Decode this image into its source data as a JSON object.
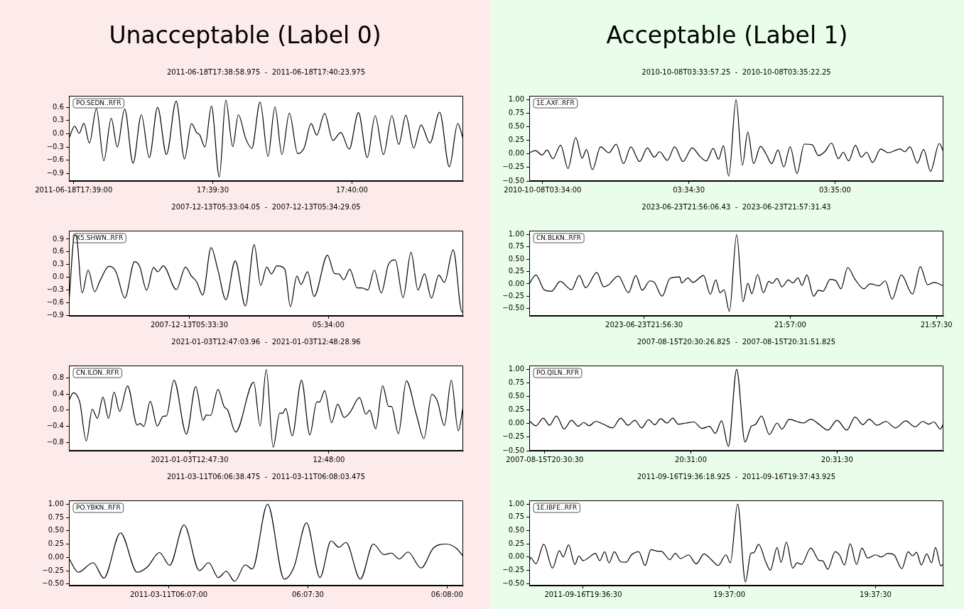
{
  "chart_data": [
    {
      "type": "other",
      "title": "Unacceptable (Label 0)"
    },
    {
      "type": "line",
      "title": "2011-06-18T17:38:58.975  -  2011-06-18T17:40:23.975",
      "annotations": [
        "PO.SEDN..RFR"
      ],
      "color": "#000000",
      "xlim": [
        "2011-06-18T17:38:58.975",
        "2011-06-18T17:40:23.975"
      ],
      "xticks": [
        {
          "value": "2011-06-18T17:39:00",
          "label": "2011-06-18T17:39:00"
        },
        {
          "value": "2011-06-18T17:39:30",
          "label": "17:39:30"
        },
        {
          "value": "2011-06-18T17:40:00",
          "label": "17:40:00"
        }
      ],
      "ylim": [
        -1.07,
        0.86
      ],
      "yticks": [
        {
          "value": -0.9,
          "label": "−0.9"
        },
        {
          "value": -0.6,
          "label": "−0.6"
        },
        {
          "value": -0.3,
          "label": "−0.3"
        },
        {
          "value": 0,
          "label": "0.0"
        },
        {
          "value": 0.3,
          "label": "0.3"
        },
        {
          "value": 0.6,
          "label": "0.6"
        }
      ],
      "x": [
        "2011-06-18T17:38:58.975",
        "2011-06-18T17:39:00.2",
        "2011-06-18T17:39:01.2",
        "2011-06-18T17:39:02.2",
        "2011-06-18T17:39:03.4",
        "2011-06-18T17:39:04.9",
        "2011-06-18T17:39:06.5",
        "2011-06-18T17:39:08.1",
        "2011-06-18T17:39:09.4",
        "2011-06-18T17:39:11.0",
        "2011-06-18T17:39:12.8",
        "2011-06-18T17:39:14.6",
        "2011-06-18T17:39:16.3",
        "2011-06-18T17:39:18.1",
        "2011-06-18T17:39:20.0",
        "2011-06-18T17:39:22.1",
        "2011-06-18T17:39:23.9",
        "2011-06-18T17:39:25.4",
        "2011-06-18T17:39:26.5",
        "2011-06-18T17:39:27.2",
        "2011-06-18T17:39:28.3",
        "2011-06-18T17:39:29.7",
        "2011-06-18T17:39:31.4",
        "2011-06-18T17:39:32.8",
        "2011-06-18T17:39:34.3",
        "2011-06-18T17:39:35.5",
        "2011-06-18T17:39:37.1",
        "2011-06-18T17:39:38.4",
        "2011-06-18T17:39:40.2",
        "2011-06-18T17:39:41.9",
        "2011-06-18T17:39:43.4",
        "2011-06-18T17:39:44.9",
        "2011-06-18T17:39:46.5",
        "2011-06-18T17:39:48.3",
        "2011-06-18T17:39:49.7",
        "2011-06-18T17:39:51.2",
        "2011-06-18T17:39:52.4",
        "2011-06-18T17:39:54.1",
        "2011-06-18T17:39:55.9",
        "2011-06-18T17:39:57.6",
        "2011-06-18T17:39:59.4",
        "2011-06-18T17:40:01.4",
        "2011-06-18T17:40:03.3",
        "2011-06-18T17:40:05.0",
        "2011-06-18T17:40:06.8",
        "2011-06-18T17:40:08.6",
        "2011-06-18T17:40:10.1",
        "2011-06-18T17:40:11.6",
        "2011-06-18T17:40:13.3",
        "2011-06-18T17:40:14.9",
        "2011-06-18T17:40:16.8",
        "2011-06-18T17:40:18.9",
        "2011-06-18T17:40:21.0",
        "2011-06-18T17:40:22.8",
        "2011-06-18T17:40:23.975"
      ],
      "values": [
        -0.11,
        0.17,
        0.01,
        0.24,
        -0.21,
        0.57,
        -0.61,
        0.35,
        -0.3,
        0.56,
        -0.67,
        0.43,
        -0.54,
        0.6,
        -0.47,
        0.74,
        -0.57,
        0.23,
        0.03,
        -0.03,
        -0.3,
        0.63,
        -0.98,
        0.76,
        -0.29,
        0.43,
        -0.11,
        -0.33,
        0.72,
        -0.51,
        0.61,
        -0.47,
        0.47,
        -0.45,
        -0.32,
        0.23,
        -0.03,
        0.46,
        -0.15,
        0.03,
        -0.35,
        0.48,
        -0.54,
        0.41,
        -0.47,
        0.41,
        -0.24,
        0.42,
        -0.32,
        0.2,
        -0.21,
        0.49,
        -0.75,
        0.23,
        -0.12
      ]
    },
    {
      "type": "line",
      "title": "2007-12-13T05:33:04.05  -  2007-12-13T05:34:29.05",
      "annotations": [
        "X5.SHWN..RFR"
      ],
      "color": "#000000",
      "xlim": [
        "2007-12-13T05:33:04.05",
        "2007-12-13T05:34:29.05"
      ],
      "xticks": [
        {
          "value": "2007-12-13T05:33:30",
          "label": "2007-12-13T05:33:30"
        },
        {
          "value": "2007-12-13T05:34:00",
          "label": "05:34:00"
        }
      ],
      "ylim": [
        -0.91,
        1.1
      ],
      "yticks": [
        {
          "value": -0.9,
          "label": "−0.9"
        },
        {
          "value": -0.6,
          "label": "−0.6"
        },
        {
          "value": -0.3,
          "label": "−0.3"
        },
        {
          "value": 0,
          "label": "0.0"
        },
        {
          "value": 0.3,
          "label": "0.3"
        },
        {
          "value": 0.6,
          "label": "0.6"
        },
        {
          "value": 0.9,
          "label": "0.9"
        }
      ],
      "x": [
        "2007-12-13T05:33:04.05",
        "2007-12-13T05:33:05.3",
        "2007-12-13T05:33:05.7",
        "2007-12-13T05:33:06.9",
        "2007-12-13T05:33:08.2",
        "2007-12-13T05:33:09.6",
        "2007-12-13T05:33:10.8",
        "2007-12-13T05:33:12.7",
        "2007-12-13T05:33:14.2",
        "2007-12-13T05:33:16.1",
        "2007-12-13T05:33:18.2",
        "2007-12-13T05:33:19.3",
        "2007-12-13T05:33:20.8",
        "2007-12-13T05:33:22.3",
        "2007-12-13T05:33:23.2",
        "2007-12-13T05:33:24.4",
        "2007-12-13T05:33:27.2",
        "2007-12-13T05:33:29.2",
        "2007-12-13T05:33:30.4",
        "2007-12-13T05:33:31.6",
        "2007-12-13T05:33:32.9",
        "2007-12-13T05:33:34.7",
        "2007-12-13T05:33:36.2",
        "2007-12-13T05:33:37.9",
        "2007-12-13T05:33:39.9",
        "2007-12-13T05:33:42.1",
        "2007-12-13T05:33:44.0",
        "2007-12-13T05:33:45.4",
        "2007-12-13T05:33:46.7",
        "2007-12-13T05:33:47.7",
        "2007-12-13T05:33:48.9",
        "2007-12-13T05:33:50.6",
        "2007-12-13T05:33:51.8",
        "2007-12-13T05:33:53.2",
        "2007-12-13T05:33:54.1",
        "2007-12-13T05:33:55.5",
        "2007-12-13T05:33:56.9",
        "2007-12-13T05:33:59.8",
        "2007-12-13T05:34:01.3",
        "2007-12-13T05:34:02.2",
        "2007-12-13T05:34:03.3",
        "2007-12-13T05:34:04.6",
        "2007-12-13T05:34:06.2",
        "2007-12-13T05:34:07.2",
        "2007-12-13T05:34:08.5",
        "2007-12-13T05:34:09.9",
        "2007-12-13T05:34:11.4",
        "2007-12-13T05:34:12.9",
        "2007-12-13T05:34:14.4",
        "2007-12-13T05:34:16.1",
        "2007-12-13T05:34:17.8",
        "2007-12-13T05:34:19.3",
        "2007-12-13T05:34:20.7",
        "2007-12-13T05:34:22.2",
        "2007-12-13T05:34:23.8",
        "2007-12-13T05:34:25.0",
        "2007-12-13T05:34:26.9",
        "2007-12-13T05:34:28.8",
        "2007-12-13T05:34:29.05"
      ],
      "values": [
        -0.6,
        1.0,
        0.95,
        -0.37,
        0.17,
        -0.34,
        -0.07,
        0.26,
        0.13,
        -0.49,
        0.37,
        0.26,
        -0.3,
        0.23,
        0.13,
        0.27,
        -0.29,
        0.24,
        0.04,
        -0.11,
        -0.42,
        0.7,
        0.16,
        -0.53,
        0.39,
        -0.68,
        0.77,
        -0.19,
        0.24,
        0.08,
        0.27,
        0.19,
        -0.69,
        0.03,
        -0.17,
        0.13,
        -0.45,
        0.52,
        0.09,
        0.08,
        -0.06,
        0.19,
        -0.25,
        -0.25,
        -0.3,
        0.17,
        -0.37,
        0.29,
        0.41,
        -0.48,
        0.59,
        -0.3,
        0.08,
        -0.49,
        0.05,
        -0.12,
        0.65,
        -0.82,
        -0.8
      ]
    },
    {
      "type": "line",
      "title": "2021-01-03T12:47:03.96  -  2021-01-03T12:48:28.96",
      "annotations": [
        "CN.ILON..RFR"
      ],
      "color": "#000000",
      "xlim": [
        "2021-01-03T12:47:03.96",
        "2021-01-03T12:48:28.96"
      ],
      "xticks": [
        {
          "value": "2021-01-03T12:47:30",
          "label": "2021-01-03T12:47:30"
        },
        {
          "value": "2021-01-03T12:48:00",
          "label": "12:48:00"
        }
      ],
      "ylim": [
        -1.0,
        1.1
      ],
      "yticks": [
        {
          "value": -0.8,
          "label": "−0.8"
        },
        {
          "value": -0.4,
          "label": "−0.4"
        },
        {
          "value": 0,
          "label": "0.0"
        },
        {
          "value": 0.4,
          "label": "0.4"
        },
        {
          "value": 0.8,
          "label": "0.8"
        }
      ],
      "x": [
        "2021-01-03T12:47:03.96",
        "2021-01-03T12:47:04.9",
        "2021-01-03T12:47:06.3",
        "2021-01-03T12:47:07.7",
        "2021-01-03T12:47:09.0",
        "2021-01-03T12:47:10.1",
        "2021-01-03T12:47:11.3",
        "2021-01-03T12:47:12.5",
        "2021-01-03T12:47:13.7",
        "2021-01-03T12:47:14.9",
        "2021-01-03T12:47:16.6",
        "2021-01-03T12:47:18.7",
        "2021-01-03T12:47:19.3",
        "2021-01-03T12:47:20.1",
        "2021-01-03T12:47:21.5",
        "2021-01-03T12:47:23.0",
        "2021-01-03T12:47:24.3",
        "2021-01-03T12:47:25.0",
        "2021-01-03T12:47:26.6",
        "2021-01-03T12:47:29.3",
        "2021-01-03T12:47:31.3",
        "2021-01-03T12:47:32.9",
        "2021-01-03T12:47:33.6",
        "2021-01-03T12:47:34.5",
        "2021-01-03T12:47:36.1",
        "2021-01-03T12:47:37.4",
        "2021-01-03T12:47:38.2",
        "2021-01-03T12:47:39.9",
        "2021-01-03T12:47:43.8",
        "2021-01-03T12:47:45.2",
        "2021-01-03T12:47:46.5",
        "2021-01-03T12:47:48.0",
        "2021-01-03T12:47:49.4",
        "2021-01-03T12:47:50.0",
        "2021-01-03T12:47:50.7",
        "2021-01-03T12:47:52.1",
        "2021-01-03T12:47:54.1",
        "2021-01-03T12:47:55.9",
        "2021-01-03T12:47:57.4",
        "2021-01-03T12:47:58.0",
        "2021-01-03T12:47:59.1",
        "2021-01-03T12:48:00.6",
        "2021-01-03T12:48:01.9",
        "2021-01-03T12:48:03.3",
        "2021-01-03T12:48:04.6",
        "2021-01-03T12:48:06.6",
        "2021-01-03T12:48:08.0",
        "2021-01-03T12:48:08.8",
        "2021-01-03T12:48:10.1",
        "2021-01-03T12:48:11.6",
        "2021-01-03T12:48:12.9",
        "2021-01-03T12:48:13.5",
        "2021-01-03T12:48:15.0",
        "2021-01-03T12:48:16.7",
        "2021-01-03T12:48:18.9",
        "2021-01-03T12:48:20.5",
        "2021-01-03T12:48:22.2",
        "2021-01-03T12:48:23.4",
        "2021-01-03T12:48:24.9",
        "2021-01-03T12:48:26.4",
        "2021-01-03T12:48:27.9",
        "2021-01-03T12:48:28.96"
      ],
      "values": [
        0.23,
        0.43,
        0.2,
        -0.76,
        0.02,
        -0.2,
        0.32,
        -0.2,
        0.44,
        -0.03,
        0.6,
        -0.37,
        -0.33,
        -0.4,
        0.22,
        -0.39,
        -0.15,
        -0.14,
        0.74,
        -0.59,
        0.58,
        -0.25,
        -0.12,
        -0.13,
        0.51,
        0.09,
        0,
        -0.54,
        0.69,
        -0.39,
        1.0,
        -0.91,
        -0.07,
        -0.08,
        0.04,
        -0.63,
        0.74,
        -0.61,
        0.2,
        0.2,
        0.48,
        -0.31,
        0.15,
        -0.18,
        -0.05,
        0.31,
        -0.1,
        0,
        -0.46,
        0.6,
        0.09,
        0.09,
        -0.58,
        0.72,
        -0.12,
        -0.7,
        0.39,
        0.22,
        -0.38,
        0.74,
        -0.51,
        0.09
      ]
    },
    {
      "type": "line",
      "title": "2011-03-11T06:06:38.475  -  2011-03-11T06:08:03.475",
      "annotations": [
        "PO.YBKN..RFR"
      ],
      "color": "#000000",
      "xlim": [
        "2011-03-11T06:06:38.475",
        "2011-03-11T06:08:03.475"
      ],
      "xticks": [
        {
          "value": "2011-03-11T06:07:00",
          "label": "2011-03-11T06:07:00"
        },
        {
          "value": "2011-03-11T06:07:30",
          "label": "06:07:30"
        },
        {
          "value": "2011-03-11T06:08:00",
          "label": "06:08:00"
        }
      ],
      "ylim": [
        -0.53,
        1.07
      ],
      "yticks": [
        {
          "value": -0.5,
          "label": "−0.50"
        },
        {
          "value": -0.25,
          "label": "−0.25"
        },
        {
          "value": 0,
          "label": "0.00"
        },
        {
          "value": 0.25,
          "label": "0.25"
        },
        {
          "value": 0.5,
          "label": "0.50"
        },
        {
          "value": 0.75,
          "label": "0.75"
        },
        {
          "value": 1,
          "label": "1.00"
        }
      ],
      "x": [
        "2011-03-11T06:06:38.475",
        "2011-03-11T06:06:40.5",
        "2011-03-11T06:06:43.7",
        "2011-03-11T06:06:46.0",
        "2011-03-11T06:06:49.6",
        "2011-03-11T06:06:53.2",
        "2011-03-11T06:06:55.4",
        "2011-03-11T06:06:58.0",
        "2011-03-11T06:07:00.2",
        "2011-03-11T06:07:03.3",
        "2011-03-11T06:07:06.6",
        "2011-03-11T06:07:08.6",
        "2011-03-11T06:07:10.7",
        "2011-03-11T06:07:12.4",
        "2011-03-11T06:07:14.2",
        "2011-03-11T06:07:16.5",
        "2011-03-11T06:07:18.0",
        "2011-03-11T06:07:21.3",
        "2011-03-11T06:07:24.9",
        "2011-03-11T06:07:27.0",
        "2011-03-11T06:07:29.7",
        "2011-03-11T06:07:32.6",
        "2011-03-11T06:07:35.0",
        "2011-03-11T06:07:36.7",
        "2011-03-11T06:07:38.2",
        "2011-03-11T06:07:41.3",
        "2011-03-11T06:07:44.1",
        "2011-03-11T06:07:46.4",
        "2011-03-11T06:07:48.0",
        "2011-03-11T06:07:49.7",
        "2011-03-11T06:07:51.6",
        "2011-03-11T06:07:54.4",
        "2011-03-11T06:07:57.1",
        "2011-03-11T06:07:59.8",
        "2011-03-11T06:08:02.0",
        "2011-03-11T06:08:03.475"
      ],
      "values": [
        -0.02,
        -0.28,
        -0.1,
        -0.39,
        0.46,
        -0.28,
        -0.18,
        0.09,
        -0.15,
        0.61,
        -0.25,
        -0.1,
        -0.38,
        -0.26,
        -0.45,
        -0.14,
        -0.22,
        1.0,
        -0.41,
        -0.18,
        0.65,
        -0.38,
        0.31,
        0.19,
        0.28,
        -0.41,
        0.25,
        0.05,
        0.08,
        -0.03,
        0.1,
        -0.2,
        0.18,
        0.25,
        0.17,
        0.02
      ]
    },
    {
      "type": "other",
      "title": "Acceptable (Label 1)"
    },
    {
      "type": "line",
      "title": "2010-10-08T03:33:57.25  -  2010-10-08T03:35:22.25",
      "annotations": [
        "1E.AXF..RFR"
      ],
      "color": "#000000",
      "xlim": [
        "2010-10-08T03:33:57.25",
        "2010-10-08T03:35:22.25"
      ],
      "xticks": [
        {
          "value": "2010-10-08T03:34:00",
          "label": "2010-10-08T03:34:00"
        },
        {
          "value": "2010-10-08T03:34:30",
          "label": "03:34:30"
        },
        {
          "value": "2010-10-08T03:35:00",
          "label": "03:35:00"
        }
      ],
      "ylim": [
        -0.5,
        1.07
      ],
      "yticks": [
        {
          "value": -0.5,
          "label": "−0.50"
        },
        {
          "value": -0.25,
          "label": "−0.25"
        },
        {
          "value": 0,
          "label": "0.00"
        },
        {
          "value": 0.25,
          "label": "0.25"
        },
        {
          "value": 0.5,
          "label": "0.50"
        },
        {
          "value": 0.75,
          "label": "0.75"
        },
        {
          "value": 1,
          "label": "1.00"
        }
      ],
      "x": [
        "2010-10-08T03:33:57.25",
        "2010-10-08T03:33:58.5",
        "2010-10-08T03:33:59.9",
        "2010-10-08T03:34:00.9",
        "2010-10-08T03:34:02.1",
        "2010-10-08T03:34:03.7",
        "2010-10-08T03:34:05.2",
        "2010-10-08T03:34:06.8",
        "2010-10-08T03:34:08.1",
        "2010-10-08T03:34:09.0",
        "2010-10-08T03:34:10.2",
        "2010-10-08T03:34:11.9",
        "2010-10-08T03:34:13.6",
        "2010-10-08T03:34:15.1",
        "2010-10-08T03:34:16.6",
        "2010-10-08T03:34:18.1",
        "2010-10-08T03:34:19.9",
        "2010-10-08T03:34:21.5",
        "2010-10-08T03:34:22.9",
        "2010-10-08T03:34:24.0",
        "2010-10-08T03:34:25.6",
        "2010-10-08T03:34:27.1",
        "2010-10-08T03:34:28.8",
        "2010-10-08T03:34:30.7",
        "2010-10-08T03:34:32.3",
        "2010-10-08T03:34:33.6",
        "2010-10-08T03:34:35.0",
        "2010-10-08T03:34:36.1",
        "2010-10-08T03:34:37.1",
        "2010-10-08T03:34:38.2",
        "2010-10-08T03:34:39.7",
        "2010-10-08T03:34:41.0",
        "2010-10-08T03:34:42.1",
        "2010-10-08T03:34:43.3",
        "2010-10-08T03:34:44.7",
        "2010-10-08T03:34:45.9",
        "2010-10-08T03:34:47.0",
        "2010-10-08T03:34:48.3",
        "2010-10-08T03:34:49.5",
        "2010-10-08T03:34:50.8",
        "2010-10-08T03:34:52.2",
        "2010-10-08T03:34:53.7",
        "2010-10-08T03:34:55.3",
        "2010-10-08T03:34:56.6",
        "2010-10-08T03:34:57.9",
        "2010-10-08T03:34:59.3",
        "2010-10-08T03:35:00.7",
        "2010-10-08T03:35:01.7",
        "2010-10-08T03:35:02.8",
        "2010-10-08T03:35:04.2",
        "2010-10-08T03:35:05.4",
        "2010-10-08T03:35:06.5",
        "2010-10-08T03:35:07.7",
        "2010-10-08T03:35:09.4",
        "2010-10-08T03:35:10.9",
        "2010-10-08T03:35:13.4",
        "2010-10-08T03:35:14.3",
        "2010-10-08T03:35:15.4",
        "2010-10-08T03:35:16.9",
        "2010-10-08T03:35:18.2",
        "2010-10-08T03:35:19.6",
        "2010-10-08T03:35:21.4",
        "2010-10-08T03:35:22.25"
      ],
      "values": [
        0.02,
        0.06,
        -0.02,
        0.07,
        -0.09,
        0.16,
        -0.27,
        0.3,
        -0.08,
        0.08,
        -0.29,
        0.13,
        0.02,
        0.18,
        -0.18,
        0.13,
        -0.14,
        0.11,
        -0.06,
        0.04,
        -0.12,
        0.13,
        -0.14,
        0.11,
        -0.05,
        -0.13,
        0.1,
        -0.1,
        0.15,
        -0.41,
        1.0,
        -0.21,
        0.4,
        -0.18,
        0.14,
        -0.01,
        -0.18,
        0.07,
        -0.24,
        0.13,
        -0.36,
        0.18,
        0.17,
        -0.03,
        0.04,
        0.2,
        -0.09,
        0.03,
        -0.13,
        0.16,
        -0.06,
        0.03,
        -0.16,
        0.09,
        0.02,
        0.09,
        0.04,
        0.13,
        -0.17,
        0.08,
        -0.32,
        0.19,
        0.04
      ]
    },
    {
      "type": "line",
      "title": "2023-06-23T21:56:06.43  -  2023-06-23T21:57:31.43",
      "annotations": [
        "CN.BLKN..RFR"
      ],
      "color": "#000000",
      "xlim": [
        "2023-06-23T21:56:06.43",
        "2023-06-23T21:57:31.43"
      ],
      "xticks": [
        {
          "value": "2023-06-23T21:56:30",
          "label": "2023-06-23T21:56:30"
        },
        {
          "value": "2023-06-23T21:57:00",
          "label": "21:57:00"
        },
        {
          "value": "2023-06-23T21:57:30",
          "label": "21:57:30"
        }
      ],
      "ylim": [
        -0.65,
        1.08
      ],
      "yticks": [
        {
          "value": -0.5,
          "label": "−0.50"
        },
        {
          "value": -0.25,
          "label": "−0.25"
        },
        {
          "value": 0,
          "label": "0.00"
        },
        {
          "value": 0.25,
          "label": "0.25"
        },
        {
          "value": 0.5,
          "label": "0.50"
        },
        {
          "value": 0.75,
          "label": "0.75"
        },
        {
          "value": 1,
          "label": "1.00"
        }
      ],
      "x": [
        "2023-06-23T21:56:06.43",
        "2023-06-23T21:56:07.8",
        "2023-06-23T21:56:09.5",
        "2023-06-23T21:56:11.0",
        "2023-06-23T21:56:12.8",
        "2023-06-23T21:56:15.1",
        "2023-06-23T21:56:16.7",
        "2023-06-23T21:56:18.0",
        "2023-06-23T21:56:20.3",
        "2023-06-23T21:56:21.7",
        "2023-06-23T21:56:22.7",
        "2023-06-23T21:56:24.7",
        "2023-06-23T21:56:26.8",
        "2023-06-23T21:56:28.3",
        "2023-06-23T21:56:29.6",
        "2023-06-23T21:56:31.2",
        "2023-06-23T21:56:32.1",
        "2023-06-23T21:56:33.7",
        "2023-06-23T21:56:35.3",
        "2023-06-23T21:56:37.3",
        "2023-06-23T21:56:37.7",
        "2023-06-23T21:56:39.0",
        "2023-06-23T21:56:40.0",
        "2023-06-23T21:56:42.2",
        "2023-06-23T21:56:43.6",
        "2023-06-23T21:56:44.7",
        "2023-06-23T21:56:45.6",
        "2023-06-23T21:56:46.4",
        "2023-06-23T21:56:47.5",
        "2023-06-23T21:56:49.0",
        "2023-06-23T21:56:50.3",
        "2023-06-23T21:56:51.3",
        "2023-06-23T21:56:52.1",
        "2023-06-23T21:56:53.3",
        "2023-06-23T21:56:54.5",
        "2023-06-23T21:56:55.6",
        "2023-06-23T21:56:56.3",
        "2023-06-23T21:56:57.3",
        "2023-06-23T21:56:58.3",
        "2023-06-23T21:56:59.6",
        "2023-06-23T21:57:00.5",
        "2023-06-23T21:57:01.6",
        "2023-06-23T21:57:02.4",
        "2023-06-23T21:57:03.4",
        "2023-06-23T21:57:04.8",
        "2023-06-23T21:57:05.8",
        "2023-06-23T21:57:06.7",
        "2023-06-23T21:57:08.2",
        "2023-06-23T21:57:09.4",
        "2023-06-23T21:57:10.4",
        "2023-06-23T21:57:11.8",
        "2023-06-23T21:57:13.3",
        "2023-06-23T21:57:15.1",
        "2023-06-23T21:57:16.4",
        "2023-06-23T21:57:18.2",
        "2023-06-23T21:57:19.5",
        "2023-06-23T21:57:20.9",
        "2023-06-23T21:57:22.8",
        "2023-06-23T21:57:25.1",
        "2023-06-23T21:57:26.7",
        "2023-06-23T21:57:28.2",
        "2023-06-23T21:57:29.5",
        "2023-06-23T21:57:31.43"
      ],
      "values": [
        0,
        0.18,
        -0.12,
        -0.15,
        0.05,
        -0.12,
        0.17,
        -0.08,
        0.23,
        -0.06,
        -0.02,
        0.16,
        -0.18,
        0.17,
        -0.13,
        0.06,
        0.03,
        -0.25,
        0.11,
        0.14,
        0.02,
        0.12,
        0.03,
        0.17,
        -0.21,
        0.08,
        -0.18,
        -0.12,
        -0.56,
        1.0,
        -0.36,
        0.01,
        -0.2,
        0.19,
        -0.18,
        0.05,
        0.01,
        0.11,
        -0.06,
        0.08,
        0.02,
        0.12,
        -0.03,
        0.18,
        -0.25,
        -0.13,
        -0.15,
        0.09,
        0.06,
        -0.1,
        0.33,
        0.09,
        -0.1,
        0,
        -0.04,
        0.06,
        -0.31,
        0.18,
        -0.21,
        0.35,
        -0.02,
        0.03,
        -0.04
      ]
    },
    {
      "type": "line",
      "title": "2007-08-15T20:30:26.825  -  2007-08-15T20:31:51.825",
      "annotations": [
        "PO.QILN..RFR"
      ],
      "color": "#000000",
      "xlim": [
        "2007-08-15T20:30:26.825",
        "2007-08-15T20:31:51.825"
      ],
      "xticks": [
        {
          "value": "2007-08-15T20:30:30",
          "label": "2007-08-15T20:30:30"
        },
        {
          "value": "2007-08-15T20:31:00",
          "label": "20:31:00"
        },
        {
          "value": "2007-08-15T20:31:30",
          "label": "20:31:30"
        }
      ],
      "ylim": [
        -0.5,
        1.07
      ],
      "yticks": [
        {
          "value": -0.5,
          "label": "−0.50"
        },
        {
          "value": -0.25,
          "label": "−0.25"
        },
        {
          "value": 0,
          "label": "0.00"
        },
        {
          "value": 0.25,
          "label": "0.25"
        },
        {
          "value": 0.5,
          "label": "0.50"
        },
        {
          "value": 0.75,
          "label": "0.75"
        },
        {
          "value": 1,
          "label": "1.00"
        }
      ],
      "x": [
        "2007-08-15T20:30:26.825",
        "2007-08-15T20:30:28.2",
        "2007-08-15T20:30:29.7",
        "2007-08-15T20:30:31.0",
        "2007-08-15T20:30:32.4",
        "2007-08-15T20:30:34.0",
        "2007-08-15T20:30:35.5",
        "2007-08-15T20:30:36.9",
        "2007-08-15T20:30:38.0",
        "2007-08-15T20:30:39.1",
        "2007-08-15T20:30:40.5",
        "2007-08-15T20:30:42.0",
        "2007-08-15T20:30:43.9",
        "2007-08-15T20:30:45.6",
        "2007-08-15T20:30:47.1",
        "2007-08-15T20:30:48.5",
        "2007-08-15T20:30:49.9",
        "2007-08-15T20:30:51.3",
        "2007-08-15T20:30:52.6",
        "2007-08-15T20:30:53.8",
        "2007-08-15T20:30:55.1",
        "2007-08-15T20:30:56.3",
        "2007-08-15T20:30:57.4",
        "2007-08-15T20:30:59.0",
        "2007-08-15T20:31:00.6",
        "2007-08-15T20:31:02.3",
        "2007-08-15T20:31:03.8",
        "2007-08-15T20:31:05.0",
        "2007-08-15T20:31:06.3",
        "2007-08-15T20:31:07.7",
        "2007-08-15T20:31:09.4",
        "2007-08-15T20:31:11.1",
        "2007-08-15T20:31:12.4",
        "2007-08-15T20:31:13.2",
        "2007-08-15T20:31:14.5",
        "2007-08-15T20:31:16.1",
        "2007-08-15T20:31:17.7",
        "2007-08-15T20:31:18.7",
        "2007-08-15T20:31:20.2",
        "2007-08-15T20:31:21.7",
        "2007-08-15T20:31:23.1",
        "2007-08-15T20:31:24.6",
        "2007-08-15T20:31:26.4",
        "2007-08-15T20:31:28.1",
        "2007-08-15T20:31:30.0",
        "2007-08-15T20:31:32.0",
        "2007-08-15T20:31:33.7",
        "2007-08-15T20:31:35.3",
        "2007-08-15T20:31:36.6",
        "2007-08-15T20:31:38.2",
        "2007-08-15T20:31:40.0",
        "2007-08-15T20:31:42.0",
        "2007-08-15T20:31:44.1",
        "2007-08-15T20:31:46.0",
        "2007-08-15T20:31:47.6",
        "2007-08-15T20:31:48.8",
        "2007-08-15T20:31:49.9",
        "2007-08-15T20:31:51.2",
        "2007-08-15T20:31:51.825"
      ],
      "values": [
        0.05,
        -0.04,
        0.1,
        -0.03,
        0.14,
        -0.1,
        0.06,
        -0.05,
        0.02,
        -0.04,
        0.04,
        -0.01,
        -0.08,
        0.1,
        -0.03,
        0.06,
        -0.08,
        0.07,
        -0.02,
        0.09,
        0.01,
        0.1,
        -0.01,
        0.01,
        0.03,
        -0.09,
        -0.05,
        -0.18,
        0.05,
        -0.42,
        1.0,
        -0.34,
        -0.05,
        -0.02,
        0.14,
        -0.2,
        0.01,
        -0.1,
        0.08,
        0.04,
        0.01,
        0.08,
        -0.02,
        -0.12,
        0.06,
        -0.12,
        0.12,
        -0.02,
        0.08,
        -0.03,
        0.04,
        -0.08,
        0.05,
        -0.06,
        0.04,
        -0.01,
        0.03,
        -0.1,
        0
      ]
    },
    {
      "type": "line",
      "title": "2011-09-16T19:36:18.925  -  2011-09-16T19:37:43.925",
      "annotations": [
        "1E.IBFE..RFR"
      ],
      "color": "#000000",
      "xlim": [
        "2011-09-16T19:36:18.925",
        "2011-09-16T19:37:43.925"
      ],
      "xticks": [
        {
          "value": "2011-09-16T19:36:30",
          "label": "2011-09-16T19:36:30"
        },
        {
          "value": "2011-09-16T19:37:00",
          "label": "19:37:00"
        },
        {
          "value": "2011-09-16T19:37:30",
          "label": "19:37:30"
        }
      ],
      "ylim": [
        -0.54,
        1.07
      ],
      "yticks": [
        {
          "value": -0.5,
          "label": "−0.50"
        },
        {
          "value": -0.25,
          "label": "−0.25"
        },
        {
          "value": 0,
          "label": "0.00"
        },
        {
          "value": 0.25,
          "label": "0.25"
        },
        {
          "value": 0.5,
          "label": "0.50"
        },
        {
          "value": 0.75,
          "label": "0.75"
        },
        {
          "value": 1,
          "label": "1.00"
        }
      ],
      "x": [
        "2011-09-16T19:36:18.925",
        "2011-09-16T19:36:19.2",
        "2011-09-16T19:36:20.3",
        "2011-09-16T19:36:21.9",
        "2011-09-16T19:36:23.7",
        "2011-09-16T19:36:25.1",
        "2011-09-16T19:36:25.9",
        "2011-09-16T19:36:27.0",
        "2011-09-16T19:36:28.3",
        "2011-09-16T19:36:29.1",
        "2011-09-16T19:36:30.0",
        "2011-09-16T19:36:31.0",
        "2011-09-16T19:36:32.5",
        "2011-09-16T19:36:33.4",
        "2011-09-16T19:36:34.4",
        "2011-09-16T19:36:35.3",
        "2011-09-16T19:36:36.4",
        "2011-09-16T19:36:37.7",
        "2011-09-16T19:36:38.8",
        "2011-09-16T19:36:39.9",
        "2011-09-16T19:36:41.4",
        "2011-09-16T19:36:42.7",
        "2011-09-16T19:36:43.9",
        "2011-09-16T19:36:45.2",
        "2011-09-16T19:36:46.0",
        "2011-09-16T19:36:47.8",
        "2011-09-16T19:36:48.9",
        "2011-09-16T19:36:50.0",
        "2011-09-16T19:36:51.6",
        "2011-09-16T19:36:53.2",
        "2011-09-16T19:36:54.8",
        "2011-09-16T19:36:56.4",
        "2011-09-16T19:36:57.7",
        "2011-09-16T19:36:59.3",
        "2011-09-16T19:37:00.2",
        "2011-09-16T19:37:01.7",
        "2011-09-16T19:37:03.3",
        "2011-09-16T19:37:04.4",
        "2011-09-16T19:37:05.0",
        "2011-09-16T19:37:06.0",
        "2011-09-16T19:37:07.5",
        "2011-09-16T19:37:08.4",
        "2011-09-16T19:37:09.8",
        "2011-09-16T19:37:10.6",
        "2011-09-16T19:37:11.7",
        "2011-09-16T19:37:13.0",
        "2011-09-16T19:37:13.9",
        "2011-09-16T19:37:14.8",
        "2011-09-16T19:37:16.7",
        "2011-09-16T19:37:18.5",
        "2011-09-16T19:37:19.1",
        "2011-09-16T19:37:20.2",
        "2011-09-16T19:37:21.7",
        "2011-09-16T19:37:22.6",
        "2011-09-16T19:37:23.6",
        "2011-09-16T19:37:24.8",
        "2011-09-16T19:37:26.1",
        "2011-09-16T19:37:27.2",
        "2011-09-16T19:37:28.4",
        "2011-09-16T19:37:30.0",
        "2011-09-16T19:37:31.2",
        "2011-09-16T19:37:32.5",
        "2011-09-16T19:37:33.8",
        "2011-09-16T19:37:35.4",
        "2011-09-16T19:37:36.7",
        "2011-09-16T19:37:37.6",
        "2011-09-16T19:37:38.4",
        "2011-09-16T19:37:39.4",
        "2011-09-16T19:37:40.5",
        "2011-09-16T19:37:41.5",
        "2011-09-16T19:37:42.3",
        "2011-09-16T19:37:43.4",
        "2011-09-16T19:37:43.925"
      ],
      "values": [
        -0.1,
        -0.01,
        -0.13,
        0.24,
        -0.21,
        0.12,
        0,
        0.23,
        -0.14,
        0.02,
        -0.07,
        -0.02,
        0.07,
        -0.07,
        0.1,
        -0.11,
        0.1,
        -0.09,
        -0.1,
        0.04,
        0.1,
        -0.16,
        0.14,
        0.11,
        0.11,
        -0.05,
        0.07,
        -0.03,
        0.04,
        -0.13,
        0.06,
        -0.06,
        -0.16,
        0.04,
        -0.11,
        1.0,
        -0.47,
        0.07,
        0.08,
        0.24,
        -0.1,
        -0.25,
        0.18,
        -0.1,
        0.28,
        -0.21,
        -0.11,
        -0.14,
        0.17,
        -0.07,
        -0.07,
        -0.23,
        0.1,
        0.04,
        -0.15,
        0.25,
        -0.14,
        0.17,
        -0.02,
        0.04,
        0,
        0.07,
        0.04,
        -0.22,
        0.1,
        0.02,
        0.09,
        -0.15,
        0.06,
        -0.11,
        0.18,
        -0.17,
        -0.13
      ]
    }
  ]
}
